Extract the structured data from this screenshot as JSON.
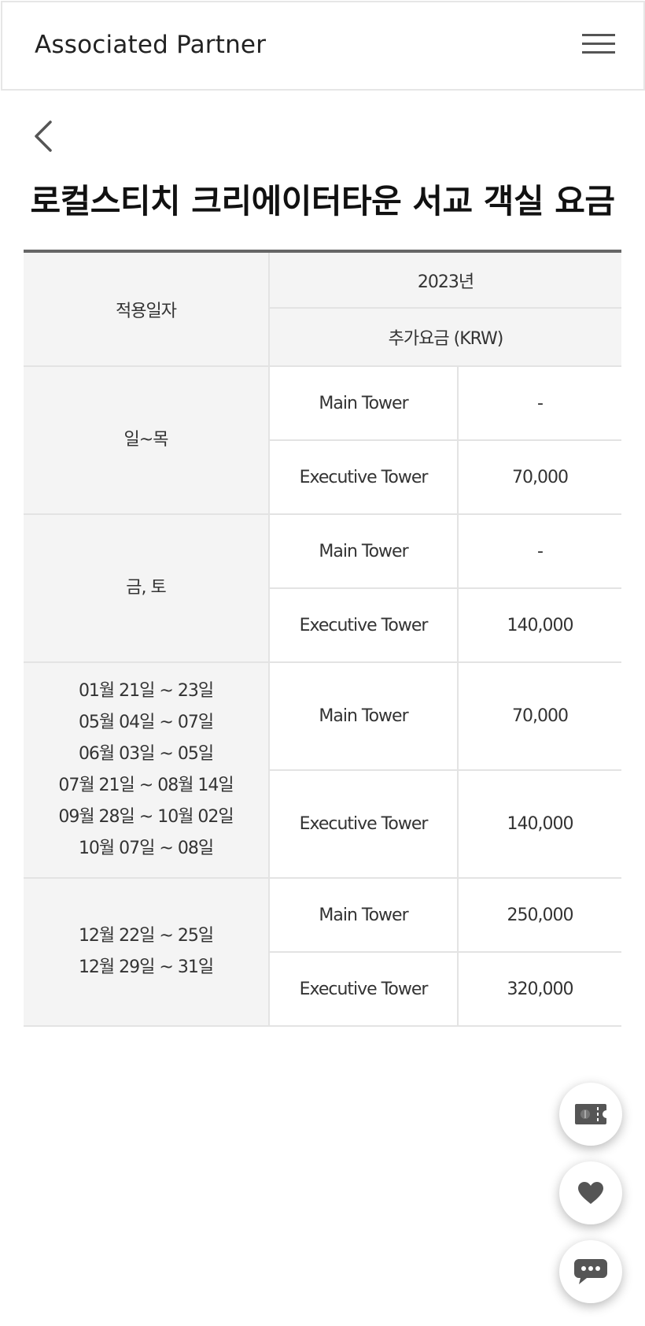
{
  "header": {
    "brand": "Associated Partner",
    "menu_icon": "hamburger-menu-icon"
  },
  "back_icon": "chevron-left-icon",
  "title": "로컬스티치 크리에이터타운 서교 객실 요금",
  "table": {
    "col_date": "적용일자",
    "year": "2023년",
    "extra_charge": "추가요금 (KRW)",
    "groups": [
      {
        "dates": [
          "일~목"
        ],
        "rows": [
          {
            "tower": "Main Tower",
            "price": "-"
          },
          {
            "tower": "Executive Tower",
            "price": "70,000"
          }
        ]
      },
      {
        "dates": [
          "금, 토"
        ],
        "rows": [
          {
            "tower": "Main Tower",
            "price": "-"
          },
          {
            "tower": "Executive Tower",
            "price": "140,000"
          }
        ]
      },
      {
        "dates": [
          "01월 21일 ~ 23일",
          "05월 04일 ~ 07일",
          "06월 03일 ~ 05일",
          "07월 21일 ~ 08월 14일",
          "09월 28일 ~ 10월 02일",
          "10월 07일 ~ 08일"
        ],
        "rows": [
          {
            "tower": "Main Tower",
            "price": "70,000"
          },
          {
            "tower": "Executive Tower",
            "price": "140,000"
          }
        ]
      },
      {
        "dates": [
          "12월 22일 ~ 25일",
          "12월 29일 ~ 31일"
        ],
        "rows": [
          {
            "tower": "Main Tower",
            "price": "250,000"
          },
          {
            "tower": "Executive Tower",
            "price": "320,000"
          }
        ]
      }
    ]
  },
  "fabs": [
    {
      "icon": "ticket-icon"
    },
    {
      "icon": "heart-icon"
    },
    {
      "icon": "chat-bubble-icon"
    }
  ],
  "colors": {
    "icon": "#555555",
    "header_bg": "#f4f4f4",
    "border": "#e3e3e3",
    "table_top": "#666666"
  }
}
